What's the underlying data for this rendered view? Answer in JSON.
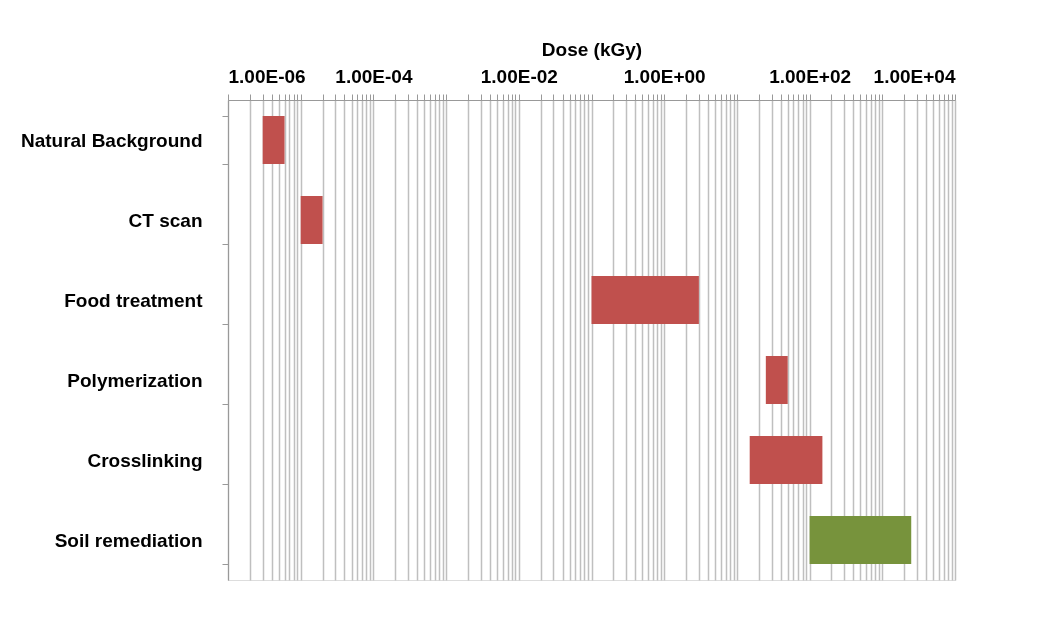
{
  "chart_data": {
    "type": "bar",
    "orientation": "horizontal",
    "xlabel": "Dose (kGy)",
    "categories": [
      "Natural Background",
      "CT scan",
      "Food treatment",
      "Polymerization",
      "Crosslinking",
      "Soil remediation"
    ],
    "base": [
      3e-06,
      1e-05,
      0.1,
      25,
      15,
      100
    ],
    "values": [
      3e-06,
      1e-05,
      2.9,
      25,
      135,
      2400
    ],
    "colors": [
      "#c0504d",
      "#c0504d",
      "#c0504d",
      "#c0504d",
      "#c0504d",
      "#77933c"
    ],
    "log": "x",
    "xlim": [
      1e-06,
      10000
    ],
    "xticks": [
      {
        "value": 1e-06,
        "label": "1.00E-06"
      },
      {
        "value": 2e-06,
        "label": null
      },
      {
        "value": 3e-06,
        "label": null
      },
      {
        "value": 4e-06,
        "label": null
      },
      {
        "value": 5e-06,
        "label": null
      },
      {
        "value": 6e-06,
        "label": null
      },
      {
        "value": 7e-06,
        "label": null
      },
      {
        "value": 8e-06,
        "label": null
      },
      {
        "value": 9e-06,
        "label": null
      },
      {
        "value": 1e-05,
        "label": null
      },
      {
        "value": 2e-05,
        "label": null
      },
      {
        "value": 3e-05,
        "label": null
      },
      {
        "value": 4e-05,
        "label": null
      },
      {
        "value": 5e-05,
        "label": null
      },
      {
        "value": 6e-05,
        "label": null
      },
      {
        "value": 7e-05,
        "label": null
      },
      {
        "value": 8e-05,
        "label": null
      },
      {
        "value": 9e-05,
        "label": null
      },
      {
        "value": 0.0001,
        "label": "1.00E-04"
      },
      {
        "value": 0.0002,
        "label": null
      },
      {
        "value": 0.0003,
        "label": null
      },
      {
        "value": 0.0004,
        "label": null
      },
      {
        "value": 0.0005,
        "label": null
      },
      {
        "value": 0.0006,
        "label": null
      },
      {
        "value": 0.0007,
        "label": null
      },
      {
        "value": 0.0008,
        "label": null
      },
      {
        "value": 0.0009,
        "label": null
      },
      {
        "value": 0.001,
        "label": null
      },
      {
        "value": 0.002,
        "label": null
      },
      {
        "value": 0.003,
        "label": null
      },
      {
        "value": 0.004,
        "label": null
      },
      {
        "value": 0.005,
        "label": null
      },
      {
        "value": 0.006,
        "label": null
      },
      {
        "value": 0.007,
        "label": null
      },
      {
        "value": 0.008,
        "label": null
      },
      {
        "value": 0.009,
        "label": null
      },
      {
        "value": 0.01,
        "label": "1.00E-02"
      },
      {
        "value": 0.02,
        "label": null
      },
      {
        "value": 0.03,
        "label": null
      },
      {
        "value": 0.04,
        "label": null
      },
      {
        "value": 0.05,
        "label": null
      },
      {
        "value": 0.06,
        "label": null
      },
      {
        "value": 0.07,
        "label": null
      },
      {
        "value": 0.08,
        "label": null
      },
      {
        "value": 0.09,
        "label": null
      },
      {
        "value": 0.1,
        "label": null
      },
      {
        "value": 0.2,
        "label": null
      },
      {
        "value": 0.3,
        "label": null
      },
      {
        "value": 0.4,
        "label": null
      },
      {
        "value": 0.5,
        "label": null
      },
      {
        "value": 0.6,
        "label": null
      },
      {
        "value": 0.7,
        "label": null
      },
      {
        "value": 0.8,
        "label": null
      },
      {
        "value": 0.9,
        "label": null
      },
      {
        "value": 1,
        "label": "1.00E+00"
      },
      {
        "value": 2,
        "label": null
      },
      {
        "value": 3,
        "label": null
      },
      {
        "value": 4,
        "label": null
      },
      {
        "value": 5,
        "label": null
      },
      {
        "value": 6,
        "label": null
      },
      {
        "value": 7,
        "label": null
      },
      {
        "value": 8,
        "label": null
      },
      {
        "value": 9,
        "label": null
      },
      {
        "value": 10,
        "label": null
      },
      {
        "value": 20,
        "label": null
      },
      {
        "value": 30,
        "label": null
      },
      {
        "value": 40,
        "label": null
      },
      {
        "value": 50,
        "label": null
      },
      {
        "value": 60,
        "label": null
      },
      {
        "value": 70,
        "label": null
      },
      {
        "value": 80,
        "label": null
      },
      {
        "value": 90,
        "label": null
      },
      {
        "value": 100,
        "label": "1.00E+02"
      },
      {
        "value": 200,
        "label": null
      },
      {
        "value": 300,
        "label": null
      },
      {
        "value": 400,
        "label": null
      },
      {
        "value": 500,
        "label": null
      },
      {
        "value": 600,
        "label": null
      },
      {
        "value": 700,
        "label": null
      },
      {
        "value": 800,
        "label": null
      },
      {
        "value": 900,
        "label": null
      },
      {
        "value": 1000,
        "label": null
      },
      {
        "value": 2000,
        "label": null
      },
      {
        "value": 3000,
        "label": null
      },
      {
        "value": 4000,
        "label": null
      },
      {
        "value": 5000,
        "label": null
      },
      {
        "value": 6000,
        "label": null
      },
      {
        "value": 7000,
        "label": null
      },
      {
        "value": 8000,
        "label": null
      },
      {
        "value": 9000,
        "label": null
      },
      {
        "value": 10000,
        "label": "1.00E+04"
      }
    ],
    "grid": "x"
  }
}
